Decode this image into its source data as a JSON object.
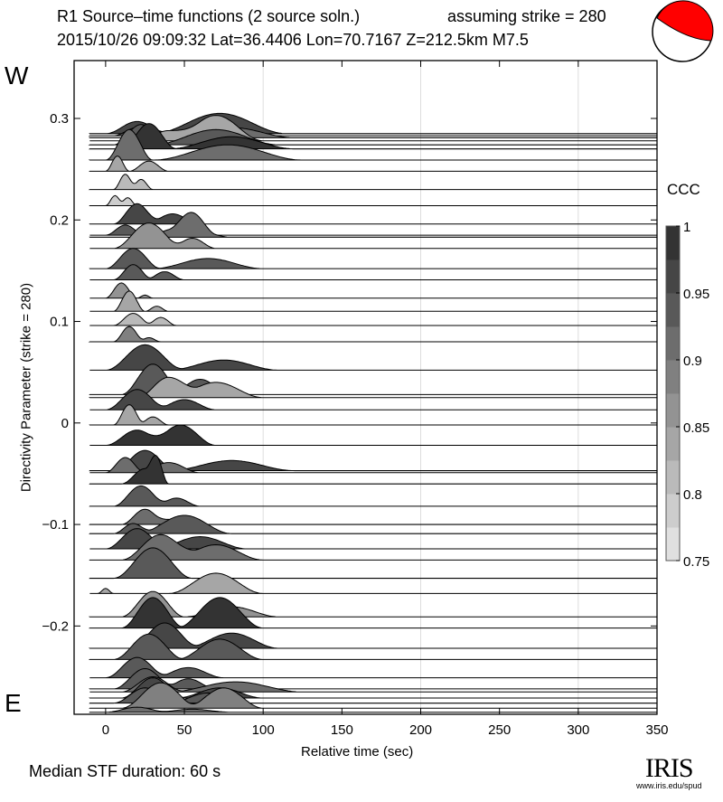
{
  "header": {
    "title": "R1 Source–time functions (2 source soln.)",
    "strike_note": "assuming strike = 280",
    "event": "2015/10/26 09:09:32  Lat=36.4406 Lon=70.7167  Z=212.5km  M7.5"
  },
  "labels": {
    "west": "W",
    "east": "E",
    "median": "Median STF duration: 60 s"
  },
  "logo": {
    "name": "IRIS",
    "url": "www.iris.edu/spud"
  },
  "colors": {
    "beachball": "#ff0000",
    "trace_outline": "#000000",
    "grid": "#dddddd"
  },
  "chart_data": {
    "type": "area",
    "title": "R1 Source–time functions (2 source soln.)",
    "xlabel": "Relative time (sec)",
    "ylabel": "Directivity Parameter (strike = 280)",
    "xlim": [
      -20,
      350
    ],
    "ylim": [
      -0.287,
      0.357
    ],
    "xticks": [
      0,
      50,
      100,
      150,
      200,
      250,
      300,
      350
    ],
    "yticks": [
      0.3,
      0.2,
      0.1,
      0,
      -0.1,
      -0.2
    ],
    "ytick_labels": [
      "0.3",
      "0.2",
      "0.1",
      "0",
      "−0.1",
      "−0.2"
    ],
    "grid_x": [
      100,
      200,
      300
    ],
    "colorbar": {
      "label": "CCC",
      "range": [
        0.75,
        1
      ],
      "ticks": [
        "1",
        "0.95",
        "0.9",
        "0.85",
        "0.8",
        "0.75"
      ],
      "tick_values": [
        1,
        0.95,
        0.9,
        0.85,
        0.8,
        0.75
      ],
      "steps": 10
    },
    "traces": [
      {
        "d": 0.285,
        "ccc": 0.97,
        "pulses": [
          [
            0,
            40,
            0.012
          ],
          [
            30,
            115,
            0.02
          ]
        ]
      },
      {
        "d": 0.283,
        "ccc": 0.93,
        "pulses": [
          [
            5,
            35,
            0.008
          ],
          [
            35,
            100,
            0.012
          ]
        ]
      },
      {
        "d": 0.281,
        "ccc": 0.9,
        "pulses": [
          [
            10,
            45,
            0.006
          ],
          [
            40,
            120,
            0.01
          ]
        ]
      },
      {
        "d": 0.278,
        "ccc": 0.84,
        "pulses": [
          [
            20,
            60,
            0.01
          ],
          [
            40,
            100,
            0.025
          ]
        ]
      },
      {
        "d": 0.274,
        "ccc": 0.95,
        "pulses": [
          [
            5,
            40,
            0.02
          ],
          [
            30,
            110,
            0.015
          ]
        ]
      },
      {
        "d": 0.27,
        "ccc": 0.98,
        "pulses": [
          [
            10,
            45,
            0.025
          ],
          [
            40,
            120,
            0.012
          ]
        ]
      },
      {
        "d": 0.259,
        "ccc": 0.9,
        "pulses": [
          [
            0,
            30,
            0.03
          ],
          [
            30,
            125,
            0.015
          ]
        ]
      },
      {
        "d": 0.248,
        "ccc": 0.85,
        "pulses": [
          [
            0,
            15,
            0.015
          ],
          [
            15,
            40,
            0.01
          ]
        ]
      },
      {
        "d": 0.23,
        "ccc": 0.8,
        "pulses": [
          [
            5,
            20,
            0.015
          ],
          [
            15,
            30,
            0.01
          ]
        ]
      },
      {
        "d": 0.214,
        "ccc": 0.78,
        "pulses": [
          [
            0,
            12,
            0.01
          ],
          [
            8,
            20,
            0.008
          ]
        ]
      },
      {
        "d": 0.196,
        "ccc": 0.97,
        "pulses": [
          [
            5,
            35,
            0.02
          ],
          [
            25,
            60,
            0.01
          ]
        ]
      },
      {
        "d": 0.185,
        "ccc": 0.95,
        "pulses": [
          [
            0,
            25,
            0.01
          ],
          [
            20,
            40,
            0.008
          ]
        ]
      },
      {
        "d": 0.183,
        "ccc": 0.9,
        "pulses": [
          [
            40,
            70,
            0.015
          ],
          [
            20,
            80,
            0.01
          ]
        ]
      },
      {
        "d": 0.172,
        "ccc": 0.86,
        "pulses": [
          [
            5,
            50,
            0.025
          ],
          [
            40,
            70,
            0.01
          ]
        ]
      },
      {
        "d": 0.152,
        "ccc": 0.95,
        "pulses": [
          [
            0,
            35,
            0.02
          ],
          [
            30,
            100,
            0.01
          ]
        ]
      },
      {
        "d": 0.141,
        "ccc": 0.93,
        "pulses": [
          [
            5,
            30,
            0.015
          ],
          [
            25,
            50,
            0.008
          ]
        ]
      },
      {
        "d": 0.123,
        "ccc": 0.86,
        "pulses": [
          [
            0,
            20,
            0.015
          ],
          [
            20,
            30,
            0.003
          ]
        ]
      },
      {
        "d": 0.11,
        "ccc": 0.85,
        "pulses": [
          [
            5,
            25,
            0.02
          ],
          [
            25,
            40,
            0.005
          ]
        ]
      },
      {
        "d": 0.096,
        "ccc": 0.82,
        "pulses": [
          [
            5,
            30,
            0.012
          ],
          [
            25,
            45,
            0.008
          ]
        ]
      },
      {
        "d": 0.08,
        "ccc": 0.88,
        "pulses": [
          [
            5,
            25,
            0.015
          ],
          [
            20,
            35,
            0.004
          ]
        ]
      },
      {
        "d": 0.052,
        "ccc": 0.97,
        "pulses": [
          [
            0,
            50,
            0.025
          ],
          [
            40,
            110,
            0.01
          ]
        ]
      },
      {
        "d": 0.028,
        "ccc": 0.95,
        "pulses": [
          [
            10,
            50,
            0.03
          ],
          [
            40,
            80,
            0.015
          ]
        ]
      },
      {
        "d": 0.025,
        "ccc": 0.83,
        "pulses": [
          [
            20,
            60,
            0.02
          ],
          [
            40,
            100,
            0.015
          ]
        ]
      },
      {
        "d": 0.013,
        "ccc": 0.96,
        "pulses": [
          [
            0,
            40,
            0.02
          ],
          [
            30,
            70,
            0.01
          ]
        ]
      },
      {
        "d": -0.002,
        "ccc": 0.85,
        "pulses": [
          [
            5,
            25,
            0.02
          ],
          [
            20,
            40,
            0.008
          ]
        ]
      },
      {
        "d": -0.022,
        "ccc": 0.99,
        "pulses": [
          [
            0,
            40,
            0.015
          ],
          [
            25,
            70,
            0.02
          ]
        ]
      },
      {
        "d": -0.047,
        "ccc": 0.97,
        "pulses": [
          [
            5,
            45,
            0.02
          ],
          [
            40,
            120,
            0.01
          ]
        ]
      },
      {
        "d": -0.049,
        "ccc": 0.9,
        "pulses": [
          [
            0,
            25,
            0.015
          ],
          [
            20,
            60,
            0.01
          ]
        ]
      },
      {
        "d": -0.06,
        "ccc": 0.98,
        "pulses": [
          [
            10,
            40,
            0.015
          ],
          [
            25,
            40,
            0.02
          ]
        ]
      },
      {
        "d": -0.082,
        "ccc": 0.94,
        "pulses": [
          [
            5,
            40,
            0.02
          ],
          [
            30,
            60,
            0.008
          ]
        ]
      },
      {
        "d": -0.1,
        "ccc": 0.92,
        "pulses": [
          [
            10,
            40,
            0.015
          ],
          [
            30,
            50,
            0.005
          ]
        ]
      },
      {
        "d": -0.109,
        "ccc": 0.93,
        "pulses": [
          [
            5,
            30,
            0.01
          ],
          [
            20,
            80,
            0.018
          ]
        ]
      },
      {
        "d": -0.124,
        "ccc": 0.96,
        "pulses": [
          [
            0,
            40,
            0.02
          ],
          [
            30,
            90,
            0.012
          ]
        ]
      },
      {
        "d": -0.135,
        "ccc": 0.92,
        "pulses": [
          [
            10,
            60,
            0.025
          ],
          [
            40,
            100,
            0.015
          ]
        ]
      },
      {
        "d": -0.153,
        "ccc": 0.95,
        "pulses": [
          [
            5,
            55,
            0.03
          ],
          [
            50,
            60,
            0.0
          ]
        ]
      },
      {
        "d": -0.168,
        "ccc": 0.85,
        "pulses": [
          [
            -5,
            5,
            0.005
          ],
          [
            40,
            100,
            0.02
          ]
        ]
      },
      {
        "d": -0.191,
        "ccc": 0.86,
        "pulses": [
          [
            10,
            50,
            0.025
          ],
          [
            50,
            110,
            0.01
          ]
        ]
      },
      {
        "d": -0.202,
        "ccc": 0.99,
        "pulses": [
          [
            10,
            50,
            0.03
          ],
          [
            45,
            100,
            0.03
          ]
        ]
      },
      {
        "d": -0.222,
        "ccc": 0.97,
        "pulses": [
          [
            15,
            60,
            0.025
          ],
          [
            50,
            110,
            0.015
          ]
        ]
      },
      {
        "d": -0.233,
        "ccc": 0.94,
        "pulses": [
          [
            5,
            50,
            0.025
          ],
          [
            45,
            100,
            0.02
          ]
        ]
      },
      {
        "d": -0.251,
        "ccc": 0.93,
        "pulses": [
          [
            0,
            40,
            0.02
          ],
          [
            30,
            75,
            0.01
          ]
        ]
      },
      {
        "d": -0.262,
        "ccc": 0.95,
        "pulses": [
          [
            5,
            45,
            0.02
          ],
          [
            35,
            70,
            0.01
          ]
        ]
      },
      {
        "d": -0.265,
        "ccc": 0.9,
        "pulses": [
          [
            10,
            50,
            0.015
          ],
          [
            40,
            125,
            0.01
          ]
        ]
      },
      {
        "d": -0.271,
        "ccc": 0.97,
        "pulses": [
          [
            10,
            50,
            0.02
          ],
          [
            45,
            100,
            0.01
          ]
        ]
      },
      {
        "d": -0.276,
        "ccc": 0.93,
        "pulses": [
          [
            5,
            45,
            0.015
          ],
          [
            40,
            90,
            0.01
          ]
        ]
      },
      {
        "d": -0.281,
        "ccc": 0.88,
        "pulses": [
          [
            10,
            60,
            0.025
          ],
          [
            50,
            100,
            0.02
          ]
        ]
      },
      {
        "d": -0.285,
        "ccc": 0.9,
        "pulses": [
          [
            0,
            40,
            0.005
          ],
          [
            30,
            80,
            0.003
          ]
        ]
      }
    ]
  }
}
